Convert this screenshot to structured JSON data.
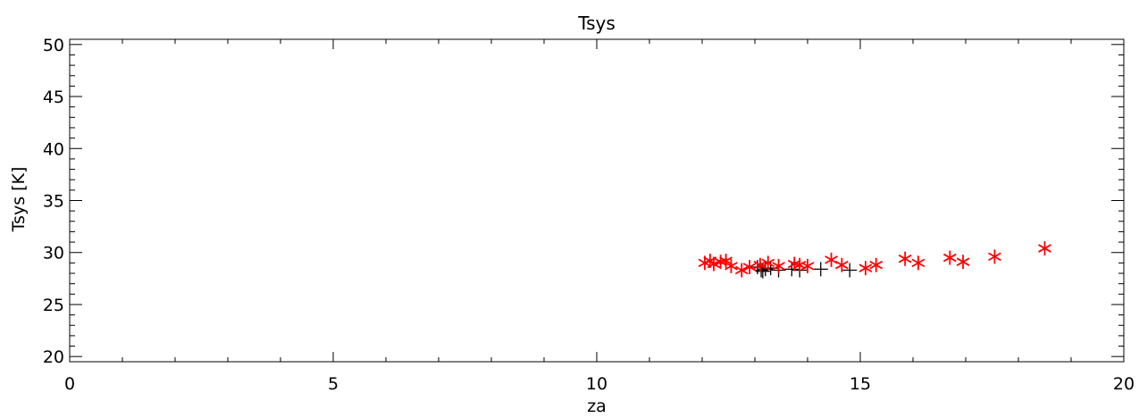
{
  "chart_data": {
    "type": "scatter",
    "title": "Tsys",
    "xlabel": "za",
    "ylabel": "Tsys [K]",
    "xlim": [
      0,
      20
    ],
    "ylim": [
      19.5,
      50.5
    ],
    "x_ticks": [
      0,
      5,
      10,
      15,
      20
    ],
    "y_ticks": [
      20,
      25,
      30,
      35,
      40,
      45,
      50
    ],
    "x_minor_step": 1,
    "y_minor_step": 1,
    "grid": false,
    "legend": "none",
    "series": [
      {
        "marker": "plus",
        "color": "#000000",
        "points": [
          [
            13.05,
            28.6
          ],
          [
            13.12,
            28.3
          ],
          [
            13.15,
            28.2
          ],
          [
            13.2,
            28.4
          ],
          [
            13.3,
            28.5
          ],
          [
            13.45,
            28.3
          ],
          [
            13.7,
            28.4
          ],
          [
            13.85,
            28.3
          ],
          [
            14.25,
            28.4
          ],
          [
            14.8,
            28.3
          ]
        ]
      },
      {
        "marker": "asterisk",
        "color": "#ff0000",
        "points": [
          [
            12.05,
            29.0
          ],
          [
            12.15,
            29.2
          ],
          [
            12.22,
            28.9
          ],
          [
            12.35,
            29.1
          ],
          [
            12.45,
            29.2
          ],
          [
            12.55,
            28.7
          ],
          [
            12.75,
            28.3
          ],
          [
            12.9,
            28.6
          ],
          [
            13.1,
            28.8
          ],
          [
            13.25,
            29.0
          ],
          [
            13.45,
            28.7
          ],
          [
            13.75,
            28.9
          ],
          [
            13.85,
            28.8
          ],
          [
            14.0,
            28.7
          ],
          [
            14.45,
            29.3
          ],
          [
            14.65,
            28.8
          ],
          [
            15.1,
            28.5
          ],
          [
            15.3,
            28.8
          ],
          [
            15.85,
            29.4
          ],
          [
            16.1,
            29.0
          ],
          [
            16.7,
            29.5
          ],
          [
            16.95,
            29.1
          ],
          [
            17.55,
            29.6
          ],
          [
            18.5,
            30.4
          ]
        ]
      }
    ]
  }
}
